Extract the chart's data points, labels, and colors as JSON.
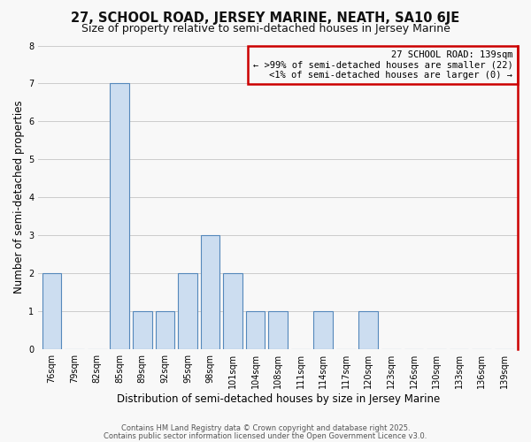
{
  "title": "27, SCHOOL ROAD, JERSEY MARINE, NEATH, SA10 6JE",
  "subtitle": "Size of property relative to semi-detached houses in Jersey Marine",
  "xlabel": "Distribution of semi-detached houses by size in Jersey Marine",
  "ylabel": "Number of semi-detached properties",
  "categories": [
    "76sqm",
    "79sqm",
    "82sqm",
    "85sqm",
    "89sqm",
    "92sqm",
    "95sqm",
    "98sqm",
    "101sqm",
    "104sqm",
    "108sqm",
    "111sqm",
    "114sqm",
    "117sqm",
    "120sqm",
    "123sqm",
    "126sqm",
    "130sqm",
    "133sqm",
    "136sqm",
    "139sqm"
  ],
  "values": [
    2,
    0,
    0,
    7,
    1,
    1,
    2,
    3,
    2,
    1,
    1,
    0,
    1,
    0,
    1,
    0,
    0,
    0,
    0,
    0,
    0
  ],
  "bar_color": "#ccddf0",
  "bar_edge_color": "#5588bb",
  "highlight_color": "#cc0000",
  "background_color": "#f8f8f8",
  "grid_color": "#cccccc",
  "legend_title": "27 SCHOOL ROAD: 139sqm",
  "legend_line1": "← >99% of semi-detached houses are smaller (22)",
  "legend_line2": "<1% of semi-detached houses are larger (0) →",
  "footer1": "Contains HM Land Registry data © Crown copyright and database right 2025.",
  "footer2": "Contains public sector information licensed under the Open Government Licence v3.0.",
  "ylim": [
    0,
    8
  ],
  "yticks": [
    0,
    1,
    2,
    3,
    4,
    5,
    6,
    7,
    8
  ],
  "title_fontsize": 10.5,
  "subtitle_fontsize": 9,
  "axis_label_fontsize": 8.5,
  "tick_fontsize": 7,
  "legend_fontsize": 7.5,
  "footer_fontsize": 6
}
